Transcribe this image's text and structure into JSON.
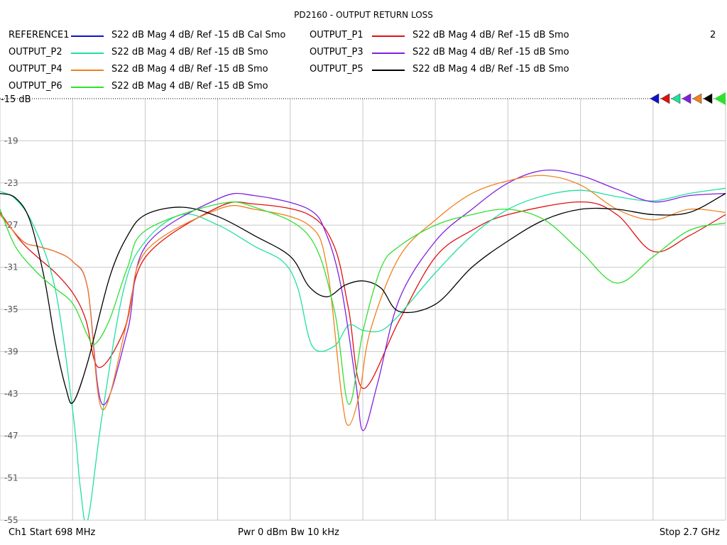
{
  "title": "PD2160 - OUTPUT RETURN LOSS",
  "channel_number": "2",
  "legend": [
    {
      "name": "REFERENCE1",
      "color": "#1010d0",
      "desc": "S22  dB Mag  4 dB/ Ref -15 dB  Cal Smo"
    },
    {
      "name": "OUTPUT_P1",
      "color": "#e01010",
      "desc": "S22  dB Mag  4 dB/ Ref -15 dB  Smo"
    },
    {
      "name": "OUTPUT_P2",
      "color": "#20e0a0",
      "desc": "S22  dB Mag  4 dB/ Ref -15 dB  Smo"
    },
    {
      "name": "OUTPUT_P3",
      "color": "#8020e0",
      "desc": "S22  dB Mag  4 dB/ Ref -15 dB  Smo"
    },
    {
      "name": "OUTPUT_P4",
      "color": "#f08020",
      "desc": "S22  dB Mag  4 dB/ Ref -15 dB  Smo"
    },
    {
      "name": "OUTPUT_P5",
      "color": "#000000",
      "desc": "S22  dB Mag  4 dB/ Ref -15 dB  Smo"
    },
    {
      "name": "OUTPUT_P6",
      "color": "#30e030",
      "desc": "S22  dB Mag  4 dB/ Ref -15 dB  Smo"
    }
  ],
  "footer": {
    "start": "Ch1  Start  698 MHz",
    "mid": "Pwr  0 dBm  Bw  10 kHz",
    "stop": "Stop  2.7 GHz"
  },
  "ref_label": "-15 dB",
  "chart_data": {
    "type": "line",
    "title": "PD2160 - OUTPUT RETURN LOSS",
    "xlim": [
      698,
      2700
    ],
    "ylim": [
      -55,
      -15
    ],
    "y_ticks": [
      "-15 dB",
      "-19",
      "-23",
      "-27",
      "-31",
      "-35",
      "-39",
      "-43",
      "-47",
      "-51",
      "-55"
    ],
    "grid": true,
    "series": [
      {
        "name": "OUTPUT_P1",
        "color": "#e01010",
        "x": [
          698,
          755,
          800,
          850,
          900,
          935,
          970,
          1040,
          1100,
          1300,
          1400,
          1550,
          1620,
          1660,
          1700,
          1800,
          1900,
          2000,
          2100,
          2300,
          2400,
          2500,
          2600,
          2700
        ],
        "y": [
          -25.8,
          -28.5,
          -30,
          -31.5,
          -33.5,
          -36,
          -40.5,
          -37,
          -30,
          -25.3,
          -25,
          -26,
          -29,
          -35,
          -42.5,
          -36,
          -30,
          -27.5,
          -26,
          -24.8,
          -26,
          -29.5,
          -28,
          -26
        ]
      },
      {
        "name": "OUTPUT_P2",
        "color": "#20e0a0",
        "x": [
          698,
          740,
          790,
          850,
          900,
          920,
          940,
          980,
          1040,
          1100,
          1200,
          1300,
          1400,
          1480,
          1520,
          1560,
          1620,
          1660,
          1700,
          1750,
          1800,
          1900,
          2000,
          2100,
          2200,
          2300,
          2400,
          2500,
          2600,
          2700
        ],
        "y": [
          -23.8,
          -24.5,
          -27,
          -33,
          -45,
          -52,
          -55,
          -45,
          -33,
          -28.5,
          -26,
          -27,
          -29,
          -30.5,
          -33,
          -38.5,
          -38.5,
          -36.5,
          -37,
          -37,
          -35.5,
          -31.5,
          -28,
          -25.5,
          -24.2,
          -23.7,
          -24.3,
          -24.7,
          -24,
          -23.5
        ]
      },
      {
        "name": "OUTPUT_P3",
        "color": "#8020e0",
        "x": [
          698,
          760,
          800,
          850,
          900,
          940,
          980,
          1050,
          1100,
          1300,
          1400,
          1550,
          1600,
          1640,
          1680,
          1700,
          1740,
          1800,
          1900,
          2000,
          2100,
          2200,
          2300,
          2400,
          2500,
          2600,
          2700
        ],
        "y": [
          -26,
          -28.5,
          -29,
          -29.5,
          -30.5,
          -33,
          -44,
          -37,
          -29,
          -24.5,
          -24.2,
          -25.5,
          -28,
          -33,
          -42,
          -46.5,
          -42,
          -34,
          -28.5,
          -25.5,
          -23,
          -21.8,
          -22.3,
          -23.6,
          -24.8,
          -24.2,
          -24
        ]
      },
      {
        "name": "OUTPUT_P4",
        "color": "#f08020",
        "x": [
          698,
          760,
          800,
          850,
          900,
          940,
          980,
          1050,
          1100,
          1300,
          1400,
          1550,
          1600,
          1640,
          1660,
          1690,
          1720,
          1800,
          1900,
          2000,
          2100,
          2200,
          2300,
          2400,
          2500,
          2600,
          2700
        ],
        "y": [
          -26,
          -28.5,
          -29,
          -29.5,
          -30.5,
          -33,
          -44.5,
          -36,
          -29.5,
          -25.5,
          -25.5,
          -27,
          -31,
          -43,
          -46,
          -43,
          -37,
          -30,
          -26.5,
          -24,
          -22.8,
          -22.3,
          -23.2,
          -25.5,
          -26.5,
          -25.5,
          -25.8
        ]
      },
      {
        "name": "OUTPUT_P5",
        "color": "#000000",
        "x": [
          698,
          740,
          780,
          820,
          850,
          880,
          900,
          940,
          1000,
          1050,
          1100,
          1200,
          1300,
          1400,
          1500,
          1550,
          1600,
          1650,
          1700,
          1750,
          1800,
          1900,
          2000,
          2100,
          2200,
          2300,
          2400,
          2500,
          2600,
          2700
        ],
        "y": [
          -24,
          -24.4,
          -26.5,
          -32,
          -38,
          -42.5,
          -43.8,
          -40,
          -32,
          -28,
          -26,
          -25.3,
          -26.2,
          -28,
          -30,
          -32.8,
          -33.8,
          -32.7,
          -32.3,
          -33,
          -35.2,
          -34.5,
          -31,
          -28.5,
          -26.5,
          -25.5,
          -25.5,
          -26,
          -25.8,
          -24
        ]
      },
      {
        "name": "OUTPUT_P6",
        "color": "#30e030",
        "x": [
          698,
          740,
          800,
          850,
          900,
          940,
          960,
          1000,
          1050,
          1100,
          1300,
          1400,
          1550,
          1620,
          1660,
          1700,
          1750,
          1800,
          1900,
          2000,
          2100,
          2200,
          2300,
          2400,
          2500,
          2600,
          2700
        ],
        "y": [
          -25.5,
          -29,
          -31.5,
          -33,
          -34.5,
          -37.5,
          -38.3,
          -36,
          -31,
          -27.5,
          -25,
          -25.3,
          -28,
          -35,
          -44,
          -37,
          -31,
          -29,
          -27,
          -26,
          -25.5,
          -26.5,
          -29.5,
          -32.5,
          -30,
          -27.5,
          -26.8
        ]
      }
    ]
  }
}
